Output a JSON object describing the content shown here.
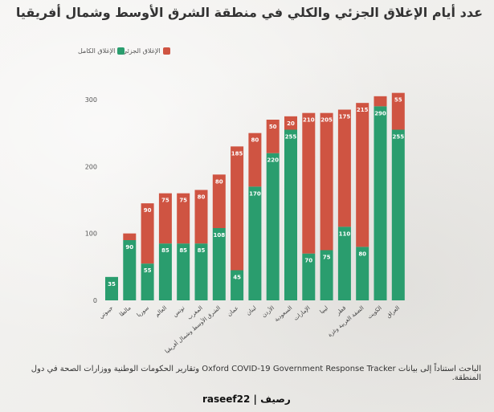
{
  "title": "عدد أيام الإغلاق الجزئي والكلي في منطقة الشرق الأوسط وشمال أفريقيا",
  "legend": {
    "partial_label": "الإغلاق الجزئي",
    "full_label": "الإغلاق الكامل"
  },
  "colors": {
    "partial": "#cf5442",
    "full": "#2a9d6e"
  },
  "source": "الباحث استناداً إلى بيانات Oxford COVID-19 Government Response Tracker وتقارير الحكومات الوطنية ووزارات الصحة في دول المنطقة.",
  "brand": "raseef22 | رصيف",
  "chart_data": {
    "type": "bar",
    "stacked": true,
    "categories": [
      "جيبوتي",
      "مالطا",
      "سوريا",
      "العالم",
      "تونس",
      "المغرب",
      "الشرق الأوسط وشمال أفريقيا",
      "عمان",
      "لبنان",
      "الأردن",
      "السعودية",
      "الإمارات",
      "ليبيا",
      "قطر",
      "الضفة الغربية وغزة",
      "الكويت",
      "العراق"
    ],
    "series": [
      {
        "name": "الإغلاق الكامل",
        "values": [
          35,
          90,
          55,
          85,
          85,
          85,
          108,
          45,
          170,
          220,
          255,
          70,
          75,
          110,
          80,
          290,
          255
        ]
      },
      {
        "name": "الإغلاق الجزئي",
        "values": [
          0,
          10,
          90,
          75,
          75,
          80,
          80,
          185,
          80,
          50,
          20,
          210,
          205,
          175,
          215,
          15,
          55
        ]
      }
    ],
    "ylim": [
      0,
      300
    ],
    "yticks": [
      0,
      100,
      200,
      300
    ],
    "title": "عدد أيام الإغلاق الجزئي والكلي في منطقة الشرق الأوسط وشمال أفريقيا"
  }
}
